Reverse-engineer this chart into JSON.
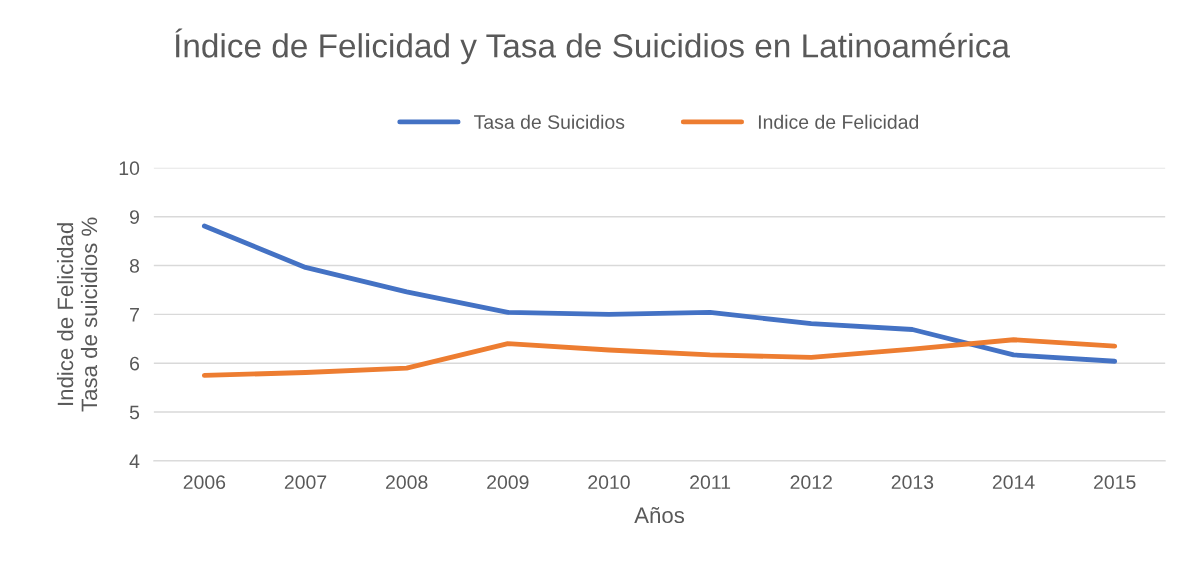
{
  "chart_data": {
    "type": "line",
    "title": "Índice de Felicidad y Tasa de Suicidios en Latinoamérica",
    "xlabel": "Años",
    "ylabel": "Indice de Felicidad\nTasa de suicidios %",
    "categories": [
      "2006",
      "2007",
      "2008",
      "2009",
      "2010",
      "2011",
      "2012",
      "2013",
      "2014",
      "2015"
    ],
    "series": [
      {
        "name": "Tasa de Suicidios",
        "color": "#4472c4",
        "values": [
          8.81,
          7.96,
          7.46,
          7.04,
          7.0,
          7.04,
          6.81,
          6.69,
          6.17,
          6.04
        ]
      },
      {
        "name": "Indice de Felicidad",
        "color": "#ed7d31",
        "values": [
          5.75,
          5.81,
          5.9,
          6.4,
          6.27,
          6.17,
          6.12,
          6.29,
          6.48,
          6.35
        ]
      }
    ],
    "ylim": [
      4,
      10
    ],
    "yticks": [
      4,
      5,
      6,
      7,
      8,
      9,
      10
    ],
    "grid": "y",
    "legend": "top",
    "marker": "none",
    "line_style": "solid"
  }
}
